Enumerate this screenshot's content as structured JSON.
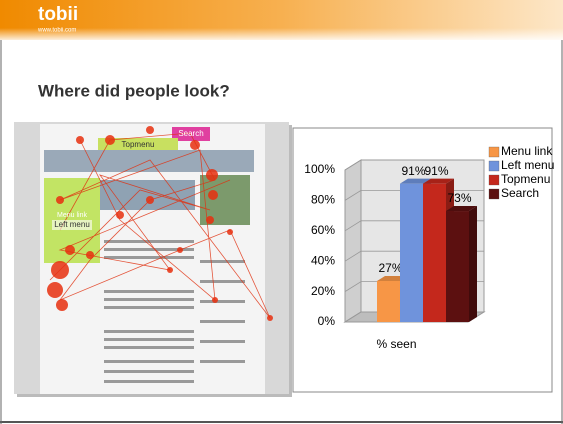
{
  "header": {
    "logo": "tobii",
    "url": "www.tobii.com"
  },
  "title": "Where did people look?",
  "heatmap": {
    "labels": [
      "Search",
      "Topmenu",
      "Menu link",
      "Left menu"
    ]
  },
  "chart_data": {
    "type": "bar",
    "categories": [
      "% seen"
    ],
    "series": [
      {
        "name": "Menu link",
        "color": "#f79646",
        "values": [
          27
        ],
        "value_labels": [
          "27%"
        ]
      },
      {
        "name": "Left menu",
        "color": "#6f93dc",
        "values": [
          91
        ],
        "value_labels": [
          "91%"
        ]
      },
      {
        "name": "Topmenu",
        "color": "#c4281c",
        "values": [
          91
        ],
        "value_labels": [
          "91%"
        ]
      },
      {
        "name": "Search",
        "color": "#5c1010",
        "values": [
          73
        ],
        "value_labels": [
          "73%"
        ]
      }
    ],
    "ylim": [
      0,
      100
    ],
    "yticks": [
      {
        "value": 0,
        "label": "0%"
      },
      {
        "value": 20,
        "label": "20%"
      },
      {
        "value": 40,
        "label": "40%"
      },
      {
        "value": 60,
        "label": "60%"
      },
      {
        "value": 80,
        "label": "80%"
      },
      {
        "value": 100,
        "label": "100%"
      }
    ],
    "grid": true,
    "legend": "right"
  }
}
